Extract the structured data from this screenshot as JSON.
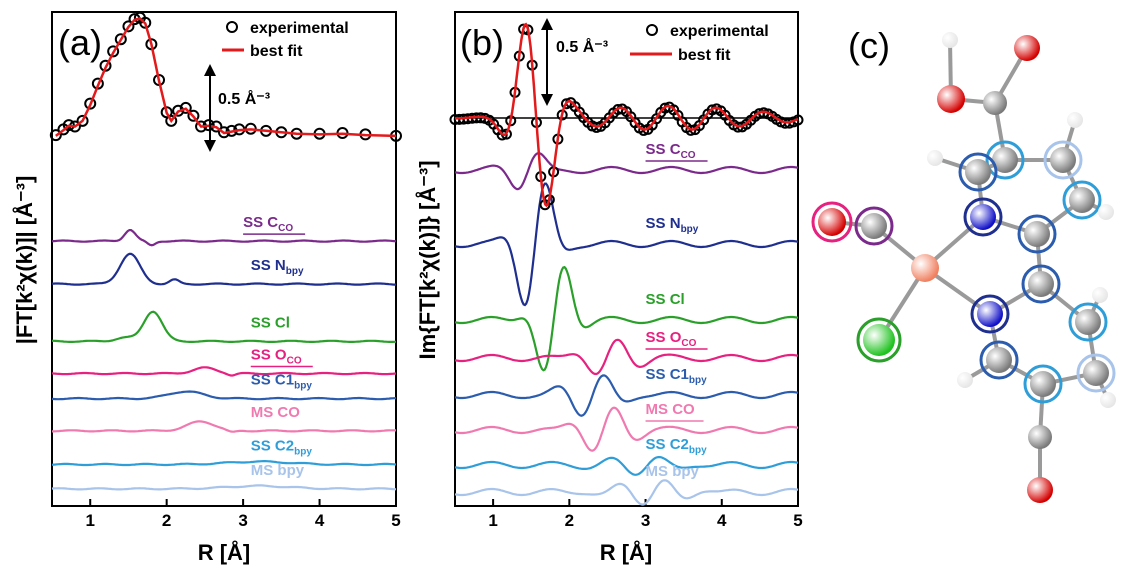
{
  "chart_data": [
    {
      "type": "line",
      "panel_label": "(a)",
      "ylabel": "|FT[k²χ(k)]| [Å⁻³]",
      "xlabel": "R [Å]",
      "xlim": [
        0.5,
        5
      ],
      "x_ticks": [
        "1",
        "2",
        "3",
        "4",
        "5"
      ],
      "scale_bar": "0.5 Å⁻³",
      "legend": [
        "experimental",
        "best fit"
      ],
      "series": [
        {
          "name": "experimental",
          "style": "open circles",
          "color": "#000000",
          "points": [
            [
              0.55,
              0.28
            ],
            [
              0.65,
              0.36
            ],
            [
              0.72,
              0.42
            ],
            [
              0.8,
              0.4
            ],
            [
              0.9,
              0.48
            ],
            [
              1.0,
              0.72
            ],
            [
              1.1,
              1.0
            ],
            [
              1.2,
              1.25
            ],
            [
              1.3,
              1.45
            ],
            [
              1.4,
              1.62
            ],
            [
              1.5,
              1.8
            ],
            [
              1.58,
              1.9
            ],
            [
              1.65,
              1.92
            ],
            [
              1.72,
              1.85
            ],
            [
              1.8,
              1.55
            ],
            [
              1.9,
              1.05
            ],
            [
              2.0,
              0.6
            ],
            [
              2.06,
              0.48
            ],
            [
              2.15,
              0.62
            ],
            [
              2.25,
              0.66
            ],
            [
              2.35,
              0.55
            ],
            [
              2.45,
              0.4
            ],
            [
              2.55,
              0.42
            ],
            [
              2.65,
              0.4
            ],
            [
              2.75,
              0.32
            ],
            [
              2.85,
              0.34
            ],
            [
              2.95,
              0.36
            ],
            [
              3.1,
              0.37
            ],
            [
              3.3,
              0.34
            ],
            [
              3.5,
              0.32
            ],
            [
              3.7,
              0.3
            ],
            [
              4.0,
              0.3
            ],
            [
              4.3,
              0.31
            ],
            [
              4.6,
              0.29
            ],
            [
              5.0,
              0.27
            ]
          ]
        },
        {
          "name": "best fit",
          "style": "line",
          "color": "#e31a1c",
          "points": [
            [
              0.55,
              0.27
            ],
            [
              0.65,
              0.35
            ],
            [
              0.72,
              0.41
            ],
            [
              0.8,
              0.4
            ],
            [
              0.9,
              0.48
            ],
            [
              1.0,
              0.7
            ],
            [
              1.1,
              0.97
            ],
            [
              1.2,
              1.22
            ],
            [
              1.3,
              1.43
            ],
            [
              1.4,
              1.61
            ],
            [
              1.5,
              1.79
            ],
            [
              1.58,
              1.89
            ],
            [
              1.65,
              1.91
            ],
            [
              1.72,
              1.84
            ],
            [
              1.8,
              1.55
            ],
            [
              1.9,
              1.04
            ],
            [
              2.0,
              0.59
            ],
            [
              2.06,
              0.48
            ],
            [
              2.15,
              0.61
            ],
            [
              2.25,
              0.65
            ],
            [
              2.35,
              0.54
            ],
            [
              2.45,
              0.4
            ],
            [
              2.55,
              0.41
            ],
            [
              2.65,
              0.39
            ],
            [
              2.75,
              0.31
            ],
            [
              2.85,
              0.33
            ],
            [
              2.95,
              0.35
            ],
            [
              3.1,
              0.36
            ],
            [
              3.3,
              0.34
            ],
            [
              3.5,
              0.32
            ],
            [
              3.7,
              0.3
            ],
            [
              4.0,
              0.29
            ],
            [
              4.3,
              0.3
            ],
            [
              4.6,
              0.28
            ],
            [
              5.0,
              0.27
            ]
          ]
        }
      ],
      "components": [
        {
          "name": "SS C",
          "sub": "CO",
          "color": "#7b2a8c",
          "underline": true,
          "offset": 1.2,
          "label_x": 3.0,
          "peaks": [
            [
              1.52,
              0.16,
              0.07
            ]
          ],
          "dip": [
            1.8,
            0.06,
            0.05
          ]
        },
        {
          "name": "SS N",
          "sub": "bpy",
          "color": "#1f2f8f",
          "underline": false,
          "offset": 1.8,
          "label_x": 3.1,
          "peaks": [
            [
              1.52,
              0.42,
              0.13
            ],
            [
              2.1,
              0.06,
              0.06
            ]
          ]
        },
        {
          "name": "SS Cl",
          "sub": "",
          "color": "#2aa02a",
          "underline": false,
          "offset": 2.6,
          "label_x": 3.1,
          "peaks": [
            [
              1.82,
              0.42,
              0.12
            ],
            [
              1.45,
              0.05,
              0.12
            ]
          ]
        },
        {
          "name": "SS O",
          "sub": "CO",
          "color": "#e6217f",
          "underline": true,
          "offset": 3.05,
          "label_x": 3.1,
          "peaks": [
            [
              2.5,
              0.08,
              0.15
            ]
          ],
          "dip": [
            2.85,
            0.03,
            0.05
          ]
        },
        {
          "name": "SS C1",
          "sub": "bpy",
          "color": "#2b5cad",
          "underline": false,
          "offset": 3.4,
          "label_x": 3.1,
          "peaks": [
            [
              2.25,
              0.1,
              0.22
            ]
          ]
        },
        {
          "name": "MS CO",
          "sub": "",
          "color": "#f07ab0",
          "underline": false,
          "offset": 3.85,
          "label_x": 3.1,
          "peaks": [
            [
              2.45,
              0.13,
              0.18
            ]
          ],
          "dip": [
            2.85,
            0.03,
            0.06
          ]
        },
        {
          "name": "SS C2",
          "sub": "bpy",
          "color": "#2f9ed8",
          "underline": false,
          "offset": 4.32,
          "label_x": 3.1,
          "peaks": [
            [
              3.2,
              0.04,
              0.4
            ]
          ]
        },
        {
          "name": "MS bpy",
          "sub": "",
          "color": "#a8c4ea",
          "underline": false,
          "offset": 4.66,
          "label_x": 3.1,
          "peaks": [
            [
              3.2,
              0.04,
              0.4
            ]
          ]
        }
      ]
    },
    {
      "type": "line",
      "panel_label": "(b)",
      "ylabel": "Im{FT[k²χ(k)]} [Å⁻³]",
      "xlabel": "R [Å]",
      "xlim": [
        0.5,
        5
      ],
      "x_ticks": [
        "1",
        "2",
        "3",
        "4",
        "5"
      ],
      "scale_bar": "0.5 Å⁻³",
      "legend": [
        "experimental",
        "best fit"
      ],
      "components": [
        {
          "name": "SS C",
          "sub": "CO",
          "color": "#7b2a8c",
          "underline": true,
          "label_x": 3.0
        },
        {
          "name": "SS N",
          "sub": "bpy",
          "color": "#1f2f8f",
          "underline": false,
          "label_x": 3.0
        },
        {
          "name": "SS Cl",
          "sub": "",
          "color": "#2aa02a",
          "underline": false,
          "label_x": 3.0
        },
        {
          "name": "SS O",
          "sub": "CO",
          "color": "#e6217f",
          "underline": true,
          "label_x": 3.0
        },
        {
          "name": "SS C1",
          "sub": "bpy",
          "color": "#2b5cad",
          "underline": false,
          "label_x": 3.0
        },
        {
          "name": "MS CO",
          "sub": "",
          "color": "#f07ab0",
          "underline": true,
          "label_x": 3.0
        },
        {
          "name": "SS C2",
          "sub": "bpy",
          "color": "#2f9ed8",
          "underline": false,
          "label_x": 3.0
        },
        {
          "name": "MS bpy",
          "sub": "",
          "color": "#a8c4ea",
          "underline": false,
          "label_x": 3.0
        }
      ]
    }
  ],
  "panel_c": {
    "label": "(c)",
    "atom_colors": {
      "carbon": "#7a7a7a",
      "hydrogen": "#e6e6e6",
      "oxygen": "#d40000",
      "nitrogen": "#1010c8",
      "chlorine": "#1fc21f",
      "metal": "#f08060"
    }
  }
}
